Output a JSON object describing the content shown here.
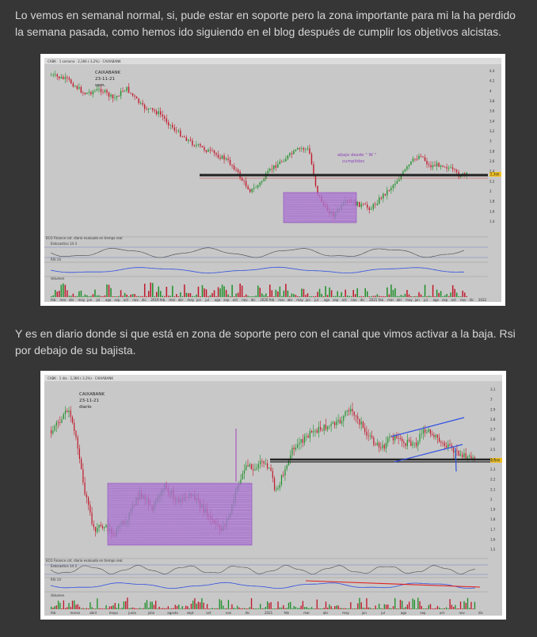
{
  "paragraph1": "Lo vemos en semanal normal, si, pude estar en soporte pero la zona importante para mi la ha perdido la semana pasada, como hemos ido siguiendo en el blog después de cumplir los objetivos alcistas.",
  "paragraph2": "Y es en diario donde si que está en zona de soporte pero con el canal que vimos activar a la baja. Rsi por debajo de su bajista.",
  "chart1": {
    "title": "CAIXABANK",
    "date": "23-11-21",
    "period": "sem.",
    "annotation_l1": "abajo desde \" W \"",
    "annotation_l2": "cumplidos",
    "price_tag": "2,366",
    "toolbar": "CABK  ·  1 semana  ·  2,366 (-3,2%)  ·  CAIXABANK",
    "osc1_label": "ECO Finance cot. diario evaluado en tiempo real",
    "osc2_label": "Estocastico 14 3",
    "osc3_label": "RSI 14",
    "vol_label": "Volumen",
    "y_labels": [
      "4,4",
      "4,2",
      "4",
      "3,8",
      "3,6",
      "3,4",
      "3,2",
      "3",
      "2,8",
      "2,6",
      "2,4",
      "2,2",
      "2",
      "1,8",
      "1,6",
      "1,4"
    ],
    "x_labels": [
      "feb",
      "mar",
      "abr",
      "may",
      "jun",
      "jul",
      "ago",
      "sep",
      "oct",
      "nov",
      "dic",
      "2019",
      "feb",
      "mar",
      "abr",
      "may",
      "jun",
      "jul",
      "ago",
      "sep",
      "oct",
      "nov",
      "dic",
      "2020",
      "feb",
      "mar",
      "abr",
      "may",
      "jun",
      "jul",
      "ago",
      "sep",
      "oct",
      "nov",
      "dic",
      "2021",
      "feb",
      "mar",
      "abr",
      "may",
      "jun",
      "jul",
      "ago",
      "sep",
      "oct",
      "nov",
      "dic",
      "2022"
    ]
  },
  "chart2": {
    "title": "CAIXABANK",
    "date": "23-11-21",
    "period": "diario",
    "price_tag": "2,366",
    "toolbar": "CABK  ·  1 día  ·  2,366 (-3,2%)  ·  CAIXABANK",
    "osc1_label": "ECO Finance cot. diario evaluado en tiempo real",
    "osc2_label": "Estocastico 14 3",
    "osc3_label": "RSI 14",
    "vol_label": "Volumen",
    "y_labels": [
      "3,1",
      "3",
      "2,9",
      "2,8",
      "2,7",
      "2,6",
      "2,5",
      "2,4",
      "2,3",
      "2,2",
      "2,1",
      "2",
      "1,9",
      "1,8",
      "1,7",
      "1,6",
      "1,5"
    ],
    "x_labels": [
      "feb",
      "marzo",
      "abril",
      "mayo",
      "junio",
      "julio",
      "agosto",
      "sept",
      "oct",
      "nov",
      "dic",
      "2021",
      "feb",
      "mar",
      "abr",
      "may",
      "jun",
      "jul",
      "ago",
      "sep",
      "oct",
      "nov",
      "dic"
    ]
  },
  "colors": {
    "page_bg": "#363636",
    "text": "#d6d6d6",
    "chart_bg": "#c8c8c8",
    "bull": "#1f8f2a",
    "bear": "#c0182a",
    "box": "#b07ad8",
    "channel": "#3050e0",
    "rsi_trend": "#e02020",
    "support": "#222222"
  }
}
